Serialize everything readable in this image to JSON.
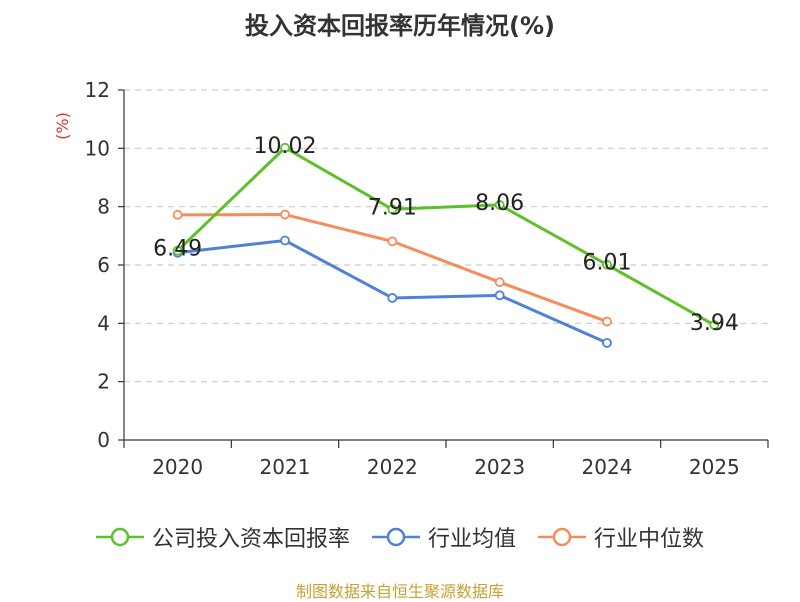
{
  "chart_data": {
    "type": "line",
    "title": "投入资本回报率历年情况(%)",
    "ylabel": "(%)",
    "xlabel": "",
    "categories": [
      "2020",
      "2021",
      "2022",
      "2023",
      "2024",
      "2025"
    ],
    "ylim": [
      0,
      12
    ],
    "yticks": [
      0,
      2,
      4,
      6,
      8,
      10,
      12
    ],
    "grid": true,
    "legend_position": "bottom",
    "series": [
      {
        "name": "公司投入资本回报率",
        "color": "#5cc02a",
        "values": [
          6.49,
          10.02,
          7.91,
          8.06,
          6.01,
          3.94
        ],
        "labels": [
          "6.49",
          "10.02",
          "7.91",
          "8.06",
          "6.01",
          "3.94"
        ],
        "show_labels": true
      },
      {
        "name": "行业均值",
        "color": "#4f81d9",
        "values": [
          6.42,
          6.84,
          4.87,
          4.96,
          3.33,
          null
        ],
        "show_labels": false
      },
      {
        "name": "行业中位数",
        "color": "#f48d5a",
        "values": [
          7.72,
          7.73,
          6.81,
          5.41,
          4.06,
          null
        ],
        "show_labels": false
      }
    ]
  },
  "footer": {
    "source": "制图数据来自恒生聚源数据库"
  }
}
